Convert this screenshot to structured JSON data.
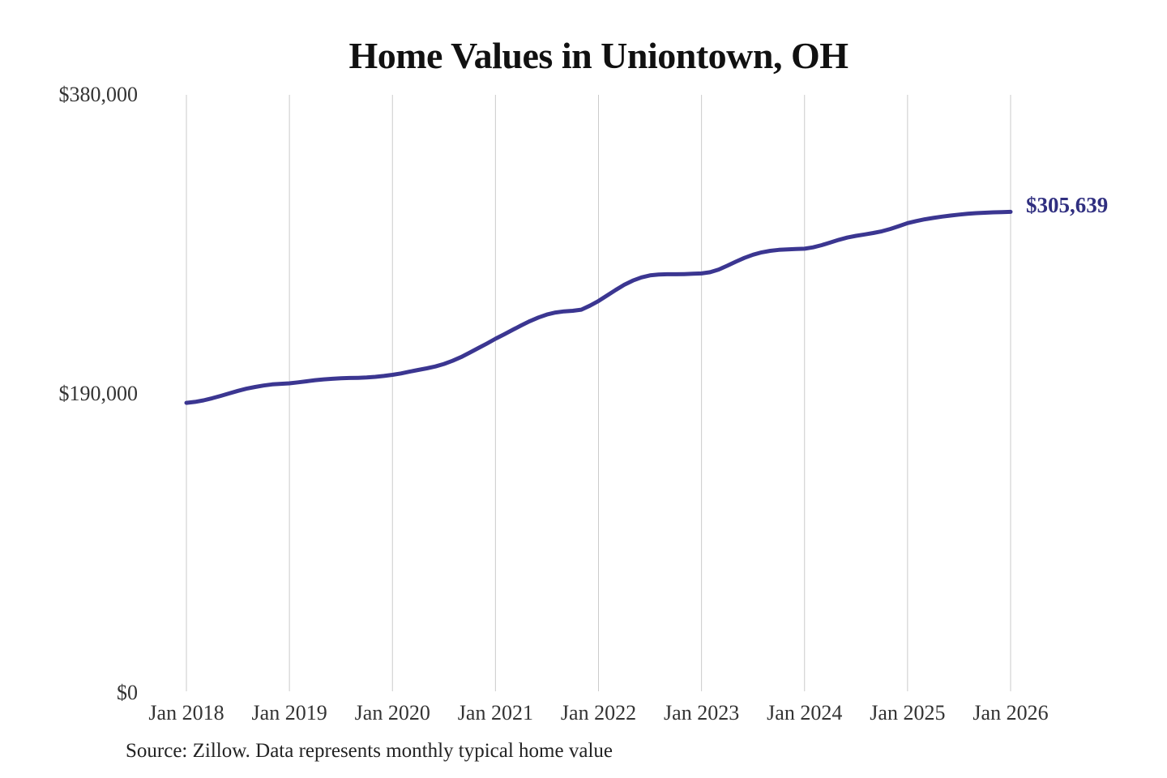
{
  "page": {
    "background": "#ffffff"
  },
  "chart": {
    "title": "Home Values in Uniontown, OH",
    "end_label": "$305,639",
    "source_note": "Source: Zillow. Data represents monthly typical home value"
  },
  "colors": {
    "line": "#3b3691",
    "end_label_text": "#302f80",
    "grid": "#cbcbcb",
    "title_text": "#111111",
    "axis_text": "#333333",
    "source_text": "#232323",
    "background": "#ffffff"
  },
  "chart_data": {
    "type": "line",
    "title": "Home Values in Uniontown, OH",
    "xlabel": "",
    "ylabel": "",
    "ylim": [
      0,
      380000
    ],
    "grid": "vertical-only",
    "legend_position": "none",
    "x_tick_labels": [
      "Jan 2018",
      "Jan 2019",
      "Jan 2020",
      "Jan 2021",
      "Jan 2022",
      "Jan 2023",
      "Jan 2024",
      "Jan 2025",
      "Jan 2026"
    ],
    "y_ticks": [
      {
        "label": "$380,000",
        "value": 380000
      },
      {
        "label": "$190,000",
        "value": 190000
      },
      {
        "label": "$0",
        "value": 0
      }
    ],
    "annotation": {
      "text": "$305,639",
      "attached_to": "last-point"
    },
    "source": "Source: Zillow. Data represents monthly typical home value",
    "series": [
      {
        "name": "Monthly typical home value",
        "start": "2018-01",
        "end": "2026-01",
        "frequency": "monthly",
        "final_value": 305639,
        "values": [
          184300,
          184900,
          185900,
          187200,
          188700,
          190300,
          191900,
          193300,
          194400,
          195300,
          196000,
          196400,
          196700,
          197300,
          198000,
          198700,
          199200,
          199600,
          199900,
          200100,
          200200,
          200400,
          200800,
          201400,
          202100,
          203000,
          204100,
          205200,
          206200,
          207400,
          209000,
          211000,
          213400,
          216200,
          219100,
          222000,
          225000,
          227800,
          230700,
          233500,
          236200,
          238500,
          240400,
          241700,
          242400,
          242800,
          243500,
          246000,
          249000,
          252500,
          256000,
          259300,
          262000,
          264000,
          265300,
          265800,
          266000,
          266000,
          266100,
          266300,
          266500,
          267300,
          269000,
          271400,
          274000,
          276400,
          278400,
          279900,
          280900,
          281500,
          281800,
          282000,
          282200,
          283100,
          284500,
          286200,
          287900,
          289300,
          290400,
          291300,
          292200,
          293300,
          294800,
          296600,
          298500,
          299800,
          300900,
          301800,
          302600,
          303300,
          303900,
          304400,
          304800,
          305100,
          305350,
          305500,
          305639
        ]
      }
    ]
  }
}
